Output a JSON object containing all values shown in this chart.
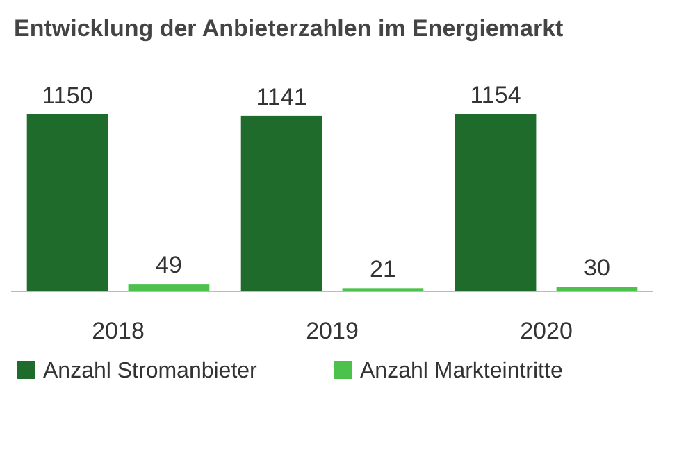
{
  "chart_data": {
    "type": "bar",
    "title": "Entwicklung der Anbieterzahlen im Energiemarkt",
    "categories": [
      "2018",
      "2019",
      "2020"
    ],
    "series": [
      {
        "name": "Anzahl Stromanbieter",
        "color": "#1f6b2b",
        "values": [
          1150,
          1141,
          1154
        ]
      },
      {
        "name": "Anzahl Markteintritte",
        "color": "#4cc24c",
        "values": [
          49,
          21,
          30
        ]
      }
    ],
    "data_labels": true,
    "legend": "bottom"
  }
}
